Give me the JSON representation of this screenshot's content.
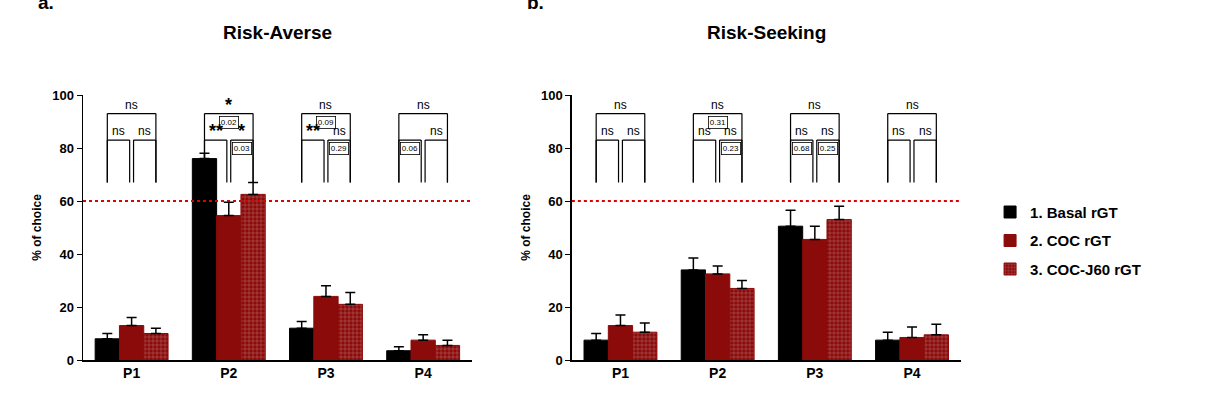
{
  "chart_data": [
    {
      "type": "bar",
      "panel_label": "a.",
      "title": "Risk-Averse",
      "y_label": "% of choice",
      "categories": [
        "P1",
        "P2",
        "P3",
        "P4"
      ],
      "series": [
        {
          "name": "1. Basal rGT",
          "color": "#000000",
          "values": [
            8,
            76,
            12,
            3.5
          ],
          "errors": [
            2,
            2,
            2.5,
            1.5
          ]
        },
        {
          "name": "2. COC rGT",
          "color": "#8b0a0a",
          "values": [
            13,
            54.5,
            24,
            7.5
          ],
          "errors": [
            3,
            5,
            4,
            2
          ]
        },
        {
          "name": "3. COC-J60 rGT",
          "color": "#8b0a0a",
          "marker": "crosshatch",
          "values": [
            10,
            62.5,
            21,
            5.5
          ],
          "errors": [
            2,
            4.5,
            4.5,
            2
          ]
        }
      ],
      "ylim": [
        0,
        100
      ],
      "yticks": [
        0,
        20,
        40,
        60,
        80,
        100
      ],
      "reference_line": 60,
      "legend": "right",
      "comparisons": [
        {
          "category": "P1",
          "between": [
            "1. Basal rGT",
            "3. COC-J60 rGT"
          ],
          "label": "ns"
        },
        {
          "category": "P1",
          "between": [
            "1. Basal rGT",
            "2. COC rGT"
          ],
          "label": "ns"
        },
        {
          "category": "P1",
          "between": [
            "2. COC rGT",
            "3. COC-J60 rGT"
          ],
          "label": "ns"
        },
        {
          "category": "P2",
          "between": [
            "1. Basal rGT",
            "3. COC-J60 rGT"
          ],
          "label": "*",
          "p": 0.02
        },
        {
          "category": "P2",
          "between": [
            "1. Basal rGT",
            "2. COC rGT"
          ],
          "label": "**"
        },
        {
          "category": "P2",
          "between": [
            "2. COC rGT",
            "3. COC-J60 rGT"
          ],
          "label": "*",
          "p": 0.03
        },
        {
          "category": "P3",
          "between": [
            "1. Basal rGT",
            "3. COC-J60 rGT"
          ],
          "label": "ns",
          "p": 0.09
        },
        {
          "category": "P3",
          "between": [
            "1. Basal rGT",
            "2. COC rGT"
          ],
          "label": "**"
        },
        {
          "category": "P3",
          "between": [
            "2. COC rGT",
            "3. COC-J60 rGT"
          ],
          "label": "ns",
          "p": 0.29
        },
        {
          "category": "P4",
          "between": [
            "1. Basal rGT",
            "3. COC-J60 rGT"
          ],
          "label": "ns"
        },
        {
          "category": "P4",
          "between": [
            "1. Basal rGT",
            "2. COC rGT"
          ],
          "p": 0.06
        },
        {
          "category": "P4",
          "between": [
            "2. COC rGT",
            "3. COC-J60 rGT"
          ],
          "label": "ns"
        }
      ]
    },
    {
      "type": "bar",
      "panel_label": "b.",
      "title": "Risk-Seeking",
      "y_label": "% of choice",
      "categories": [
        "P1",
        "P2",
        "P3",
        "P4"
      ],
      "series": [
        {
          "name": "1. Basal rGT",
          "color": "#000000",
          "values": [
            7.5,
            34,
            50.5,
            7.5
          ],
          "errors": [
            2.5,
            4.5,
            6,
            3
          ]
        },
        {
          "name": "2. COC rGT",
          "color": "#8b0a0a",
          "values": [
            13,
            32.5,
            45.5,
            8.5
          ],
          "errors": [
            4,
            3,
            5,
            4
          ]
        },
        {
          "name": "3. COC-J60 rGT",
          "color": "#8b0a0a",
          "marker": "crosshatch",
          "values": [
            10.5,
            27,
            53,
            9.5
          ],
          "errors": [
            3.5,
            3,
            5,
            4
          ]
        }
      ],
      "ylim": [
        0,
        100
      ],
      "yticks": [
        0,
        20,
        40,
        60,
        80,
        100
      ],
      "reference_line": 60,
      "comparisons": [
        {
          "category": "P1",
          "between": [
            "1. Basal rGT",
            "3. COC-J60 rGT"
          ],
          "label": "ns"
        },
        {
          "category": "P1",
          "between": [
            "1. Basal rGT",
            "2. COC rGT"
          ],
          "label": "ns"
        },
        {
          "category": "P1",
          "between": [
            "2. COC rGT",
            "3. COC-J60 rGT"
          ],
          "label": "ns"
        },
        {
          "category": "P2",
          "between": [
            "1. Basal rGT",
            "3. COC-J60 rGT"
          ],
          "label": "ns",
          "p": 0.31
        },
        {
          "category": "P2",
          "between": [
            "1. Basal rGT",
            "2. COC rGT"
          ],
          "label": "ns"
        },
        {
          "category": "P2",
          "between": [
            "2. COC rGT",
            "3. COC-J60 rGT"
          ],
          "label": "ns",
          "p": 0.23
        },
        {
          "category": "P3",
          "between": [
            "1. Basal rGT",
            "3. COC-J60 rGT"
          ],
          "label": "ns"
        },
        {
          "category": "P3",
          "between": [
            "1. Basal rGT",
            "2. COC rGT"
          ],
          "label": "ns",
          "p": 0.68
        },
        {
          "category": "P3",
          "between": [
            "2. COC rGT",
            "3. COC-J60 rGT"
          ],
          "label": "ns",
          "p": 0.25
        },
        {
          "category": "P4",
          "between": [
            "1. Basal rGT",
            "3. COC-J60 rGT"
          ],
          "label": "ns"
        },
        {
          "category": "P4",
          "between": [
            "1. Basal rGT",
            "2. COC rGT"
          ],
          "label": "ns"
        },
        {
          "category": "P4",
          "between": [
            "2. COC rGT",
            "3. COC-J60 rGT"
          ],
          "label": "ns"
        }
      ]
    }
  ]
}
